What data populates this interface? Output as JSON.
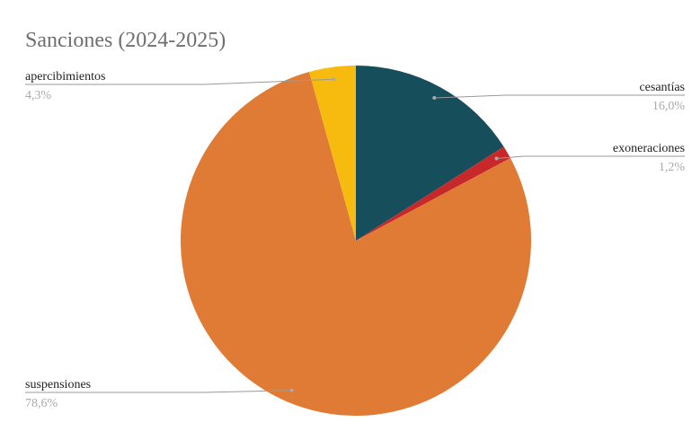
{
  "chart_data": {
    "type": "pie",
    "title": "Sanciones  (2024-2025)",
    "categories": [
      "cesantías",
      "exoneraciones",
      "suspensiones",
      "apercibimientos"
    ],
    "values": [
      16.0,
      1.2,
      78.6,
      4.3
    ],
    "value_labels": [
      "16,0%",
      "1,2%",
      "78,6%",
      "4,3%"
    ],
    "colors": [
      "#174e5b",
      "#c7282a",
      "#e07b36",
      "#f7bb10"
    ]
  }
}
